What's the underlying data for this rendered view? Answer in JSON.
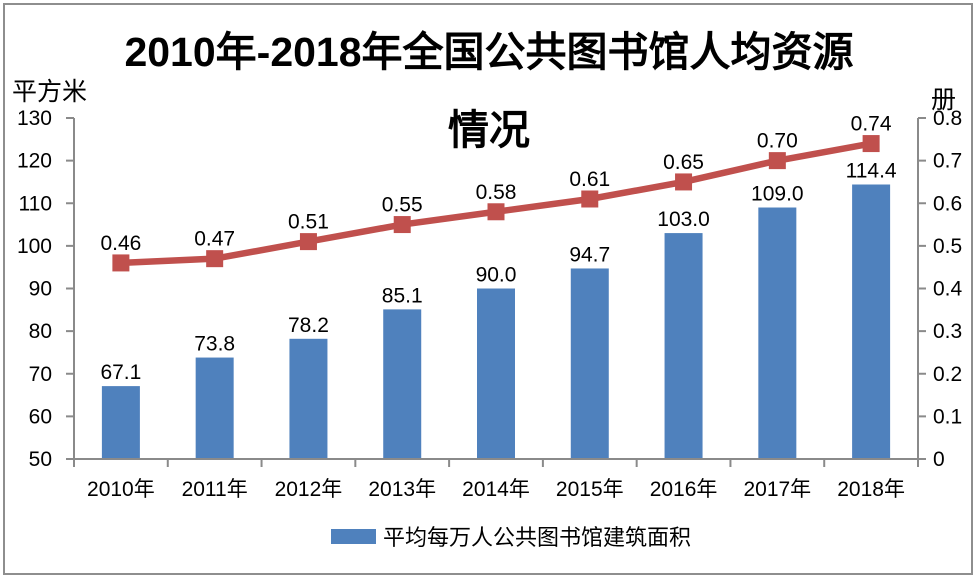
{
  "title": {
    "line1": "2010年-2018年全国公共图书馆人均资源",
    "line2": "情况"
  },
  "left_axis": {
    "unit": "平方米",
    "min": 50,
    "max": 130,
    "ticks": [
      "130",
      "120",
      "110",
      "100",
      "90",
      "80",
      "70",
      "60",
      "50"
    ]
  },
  "right_axis": {
    "unit": "册",
    "min": 0,
    "max": 0.8,
    "ticks": [
      "0.8",
      "0.7",
      "0.6",
      "0.5",
      "0.4",
      "0.3",
      "0.2",
      "0.1",
      "0"
    ]
  },
  "legend": {
    "items": [
      {
        "label": "平均每万人公共图书馆建筑面积",
        "color": "#4F81BD",
        "series_type": "bar"
      }
    ]
  },
  "colors": {
    "bar": "#4F81BD",
    "line": "#C0504D",
    "axis": "#8A8A8A"
  },
  "chart_data": {
    "type": "combo",
    "title": "2010年-2018年全国公共图书馆人均资源情况",
    "categories": [
      "2010年",
      "2011年",
      "2012年",
      "2013年",
      "2014年",
      "2015年",
      "2016年",
      "2017年",
      "2018年"
    ],
    "series": [
      {
        "type": "bar",
        "axis": "left",
        "name": "平均每万人公共图书馆建筑面积",
        "color": "#4F81BD",
        "values": [
          67.1,
          73.8,
          78.2,
          85.1,
          90.0,
          94.7,
          103.0,
          109.0,
          114.4
        ],
        "labels": [
          "67.1",
          "73.8",
          "78.2",
          "85.1",
          "90.0",
          "94.7",
          "103.0",
          "109.0",
          "114.4"
        ]
      },
      {
        "type": "line",
        "axis": "right",
        "color": "#C0504D",
        "marker": "square",
        "values": [
          0.46,
          0.47,
          0.51,
          0.55,
          0.58,
          0.61,
          0.65,
          0.7,
          0.74
        ],
        "labels": [
          "0.46",
          "0.47",
          "0.51",
          "0.55",
          "0.58",
          "0.61",
          "0.65",
          "0.70",
          "0.74"
        ]
      }
    ],
    "left_axis_label": "平方米",
    "right_axis_label": "册",
    "left_axis_range": [
      50,
      130
    ],
    "right_axis_range": [
      0,
      0.8
    ],
    "grid": false,
    "legend_position": "bottom"
  }
}
